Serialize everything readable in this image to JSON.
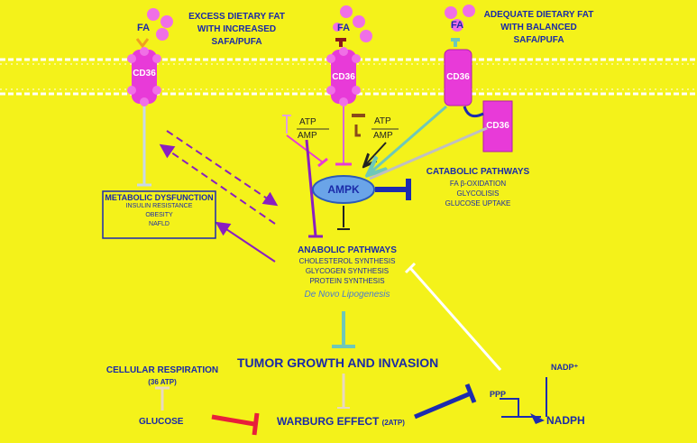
{
  "labels": {
    "fa_left": "FA",
    "fa_mid": "FA",
    "fa_right": "FA",
    "cd36_left": "CD36",
    "cd36_mid": "CD36",
    "cd36_right": "CD36",
    "cd36_box": "CD36",
    "excess_line1": "EXCESS DIETARY FAT",
    "excess_line2": "WITH INCREASED",
    "excess_line3": "SAFA/PUFA",
    "adequate_line1": "ADEQUATE DIETARY FAT",
    "adequate_line2": "WITH BALANCED",
    "adequate_line3": "SAFA/PUFA",
    "atp_left": "ATP",
    "amp_left": "AMP",
    "atp_right": "ATP",
    "amp_right": "AMP",
    "ampk": "AMPK",
    "catabolic_title": "CATABOLIC PATHWAYS",
    "catabolic_items": [
      "FA β-OXIDATION",
      "GLYCOLISIS",
      "GLUCOSE UPTAKE"
    ],
    "metabolic_title": "METABOLIC DYSFUNCTION",
    "metabolic_items": [
      "INSULIN RESISTANCE",
      "OBESITY",
      "NAFLD"
    ],
    "anabolic_title": "ANABOLIC PATHWAYS",
    "anabolic_items": [
      "CHOLESTEROL SYNTHESIS",
      "GLYCOGEN SYNTHESIS",
      "PROTEIN SYNTHESIS"
    ],
    "de_novo": "De Novo Lipogenesis",
    "tumor": "TUMOR GROWTH AND INVASION",
    "cellular_resp": "CELLULAR RESPIRATION",
    "atp_36": "(36 ATP)",
    "glucose": "GLUCOSE",
    "warburg": "WARBURG EFFECT",
    "warburg_atp": "(2ATP)",
    "ppp": "PPP",
    "nadp": "NADP⁺",
    "nadph": "NADPH"
  },
  "colors": {
    "background": "#f4f21a",
    "text": "#1a2aa8",
    "cd36_fill": "#e83ad8",
    "fa_ball": "#f06fe6",
    "ampk_fill": "#6aa4e8",
    "inhibit_blue": "#1c2bb0",
    "inhibit_red": "#e8203a",
    "purple": "#8a1fc0",
    "teal": "#6ec8b8",
    "white": "#ffffff"
  }
}
